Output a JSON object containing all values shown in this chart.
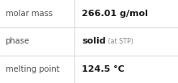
{
  "rows": [
    {
      "label": "molar mass",
      "value_bold": "266.01 g/mol",
      "value_small": ""
    },
    {
      "label": "phase",
      "value_bold": "solid",
      "value_small": " (at STP)"
    },
    {
      "label": "melting point",
      "value_bold": "124.5 °C",
      "value_small": ""
    }
  ],
  "background_color": "#ffffff",
  "line_color": "#cccccc",
  "label_color": "#505050",
  "value_color": "#1a1a1a",
  "small_color": "#888888",
  "label_fontsize": 7.2,
  "value_fontsize": 8.0,
  "small_fontsize": 5.8,
  "col_split": 0.42,
  "fig_width": 2.2,
  "fig_height": 1.03,
  "dpi": 100,
  "line_width": 0.5
}
